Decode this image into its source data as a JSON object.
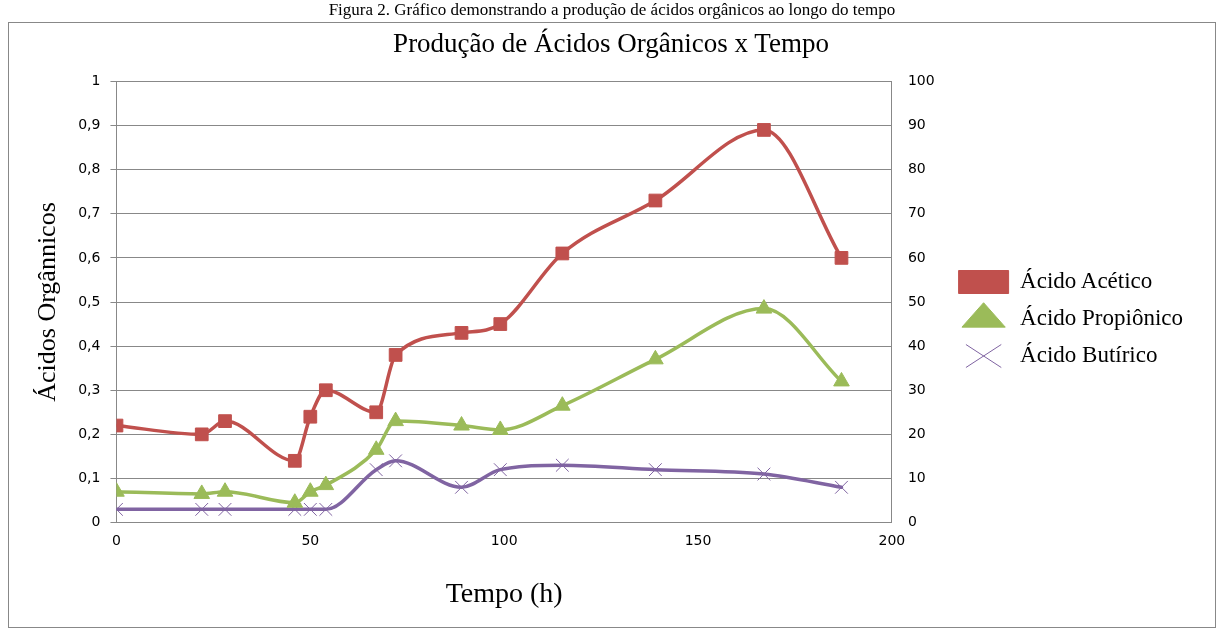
{
  "chart_data": {
    "type": "line",
    "title": "Produção de Ácidos Orgânicos x Tempo",
    "annotations": [
      "Figura 2. Gráfico demonstrando a produção de ácidos orgânicos ao longo do tempo"
    ],
    "xlabel": "Tempo (h)",
    "ylabel": "Ácidos Orgânnicos",
    "x": [
      0,
      22,
      28,
      46,
      50,
      54,
      67,
      72,
      89,
      99,
      115,
      139,
      167,
      187
    ],
    "series": [
      {
        "name": "Ácido Acético",
        "color": "#c0504d",
        "marker": "square",
        "values": [
          0.22,
          0.2,
          0.23,
          0.14,
          0.24,
          0.3,
          0.25,
          0.38,
          0.43,
          0.45,
          0.61,
          0.73,
          0.89,
          0.6
        ]
      },
      {
        "name": "Ácido Propiônico",
        "color": "#9bbb59",
        "marker": "triangle",
        "values": [
          0.07,
          0.065,
          0.07,
          0.045,
          0.07,
          0.085,
          0.165,
          0.23,
          0.22,
          0.21,
          0.265,
          0.37,
          0.485,
          0.32
        ]
      },
      {
        "name": "Ácido Butírico",
        "color": "#8064a2",
        "marker": "cross",
        "values": [
          0.03,
          0.03,
          0.03,
          0.03,
          0.03,
          0.03,
          0.12,
          0.14,
          0.08,
          0.12,
          0.13,
          0.12,
          0.11,
          0.08
        ]
      }
    ],
    "xlim": [
      0,
      200
    ],
    "xticks": [
      0,
      50,
      100,
      150,
      200
    ],
    "ylim": [
      0,
      1
    ],
    "yticks": [
      0,
      {
        "value": 0.1,
        "label": "0,1"
      },
      {
        "value": 0.2,
        "label": "0,2"
      },
      {
        "value": 0.3,
        "label": "0,3"
      },
      {
        "value": 0.4,
        "label": "0,4"
      },
      {
        "value": 0.5,
        "label": "0,5"
      },
      {
        "value": 0.6,
        "label": "0,6"
      },
      {
        "value": 0.7,
        "label": "0,7"
      },
      {
        "value": 0.8,
        "label": "0,8"
      },
      {
        "value": 0.9,
        "label": "0,9"
      },
      1
    ],
    "y2lim": [
      0,
      100
    ],
    "y2ticks": [
      0,
      10,
      20,
      30,
      40,
      50,
      60,
      70,
      80,
      90,
      100
    ],
    "grid": "y",
    "legend": "right",
    "line_style": "solid"
  }
}
